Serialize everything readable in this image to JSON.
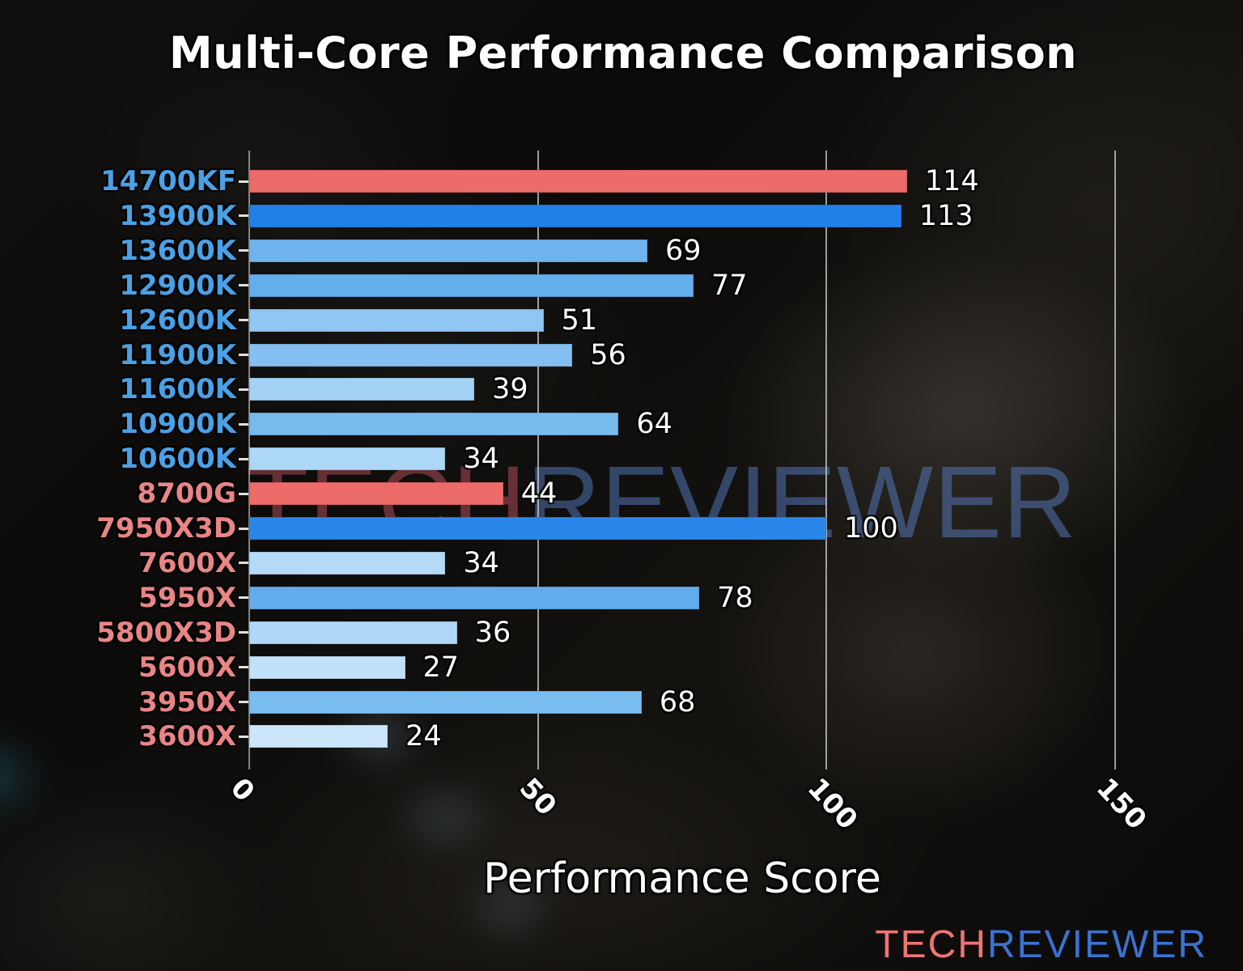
{
  "chart_data": {
    "type": "bar",
    "orientation": "horizontal",
    "title": "Multi-Core Performance Comparison",
    "xlabel": "Performance Score",
    "xlim": [
      0,
      150
    ],
    "xticks": [
      0,
      50,
      100,
      150
    ],
    "xtick_labels": [
      "0",
      "50",
      "100",
      "150"
    ],
    "grid": true,
    "legend": null,
    "categories": [
      "14700KF",
      "13900K",
      "13600K",
      "12900K",
      "12600K",
      "11900K",
      "11600K",
      "10900K",
      "10600K",
      "8700G",
      "7950X3D",
      "7600X",
      "5950X",
      "5800X3D",
      "5600X",
      "3950X",
      "3600X"
    ],
    "values": [
      114,
      113,
      69,
      77,
      51,
      56,
      39,
      64,
      34,
      44,
      100,
      34,
      78,
      36,
      27,
      68,
      24
    ],
    "bars": [
      {
        "label": "14700KF",
        "value": 114,
        "brand": "intel",
        "bar_color": "#ed6b68",
        "highlighted": true
      },
      {
        "label": "13900K",
        "value": 113,
        "brand": "intel",
        "bar_color": "#1f81e8",
        "highlighted": false
      },
      {
        "label": "13600K",
        "value": 69,
        "brand": "intel",
        "bar_color": "#6fb4ee",
        "highlighted": false
      },
      {
        "label": "12900K",
        "value": 77,
        "brand": "intel",
        "bar_color": "#63aeec",
        "highlighted": false
      },
      {
        "label": "12600K",
        "value": 51,
        "brand": "intel",
        "bar_color": "#90c6f3",
        "highlighted": false
      },
      {
        "label": "11900K",
        "value": 56,
        "brand": "intel",
        "bar_color": "#84bff1",
        "highlighted": false
      },
      {
        "label": "11600K",
        "value": 39,
        "brand": "intel",
        "bar_color": "#a4d2f5",
        "highlighted": false
      },
      {
        "label": "10900K",
        "value": 64,
        "brand": "intel",
        "bar_color": "#77baee",
        "highlighted": false
      },
      {
        "label": "10600K",
        "value": 34,
        "brand": "intel",
        "bar_color": "#add7f6",
        "highlighted": false
      },
      {
        "label": "8700G",
        "value": 44,
        "brand": "amd",
        "bar_color": "#ed6b68",
        "highlighted": true
      },
      {
        "label": "7950X3D",
        "value": 100,
        "brand": "amd",
        "bar_color": "#2a87e9",
        "highlighted": false
      },
      {
        "label": "7600X",
        "value": 34,
        "brand": "amd",
        "bar_color": "#b4daf7",
        "highlighted": false
      },
      {
        "label": "5950X",
        "value": 78,
        "brand": "amd",
        "bar_color": "#61adec",
        "highlighted": false
      },
      {
        "label": "5800X3D",
        "value": 36,
        "brand": "amd",
        "bar_color": "#b0d8f6",
        "highlighted": false
      },
      {
        "label": "5600X",
        "value": 27,
        "brand": "amd",
        "bar_color": "#c1e1f8",
        "highlighted": false
      },
      {
        "label": "3950X",
        "value": 68,
        "brand": "amd",
        "bar_color": "#79bcef",
        "highlighted": false
      },
      {
        "label": "3600X",
        "value": 24,
        "brand": "amd",
        "bar_color": "#cbe6fa",
        "highlighted": false
      }
    ],
    "category_label_colors": {
      "intel": "#4aa1e5",
      "amd": "#e98585"
    },
    "highlight_color": "#ed6b68",
    "gridline_color": "#cdcdcd"
  },
  "watermark": {
    "part1": "TECH",
    "part2": "REVIEWER",
    "tech_color": "rgba(190,82,96,0.50)",
    "reviewer_color": "rgba(88,126,196,0.50)"
  },
  "logo": {
    "part1": "TECH",
    "part2": "REVIEWER",
    "tech_color": "#ef7474",
    "reviewer_color": "#3a72d0"
  }
}
